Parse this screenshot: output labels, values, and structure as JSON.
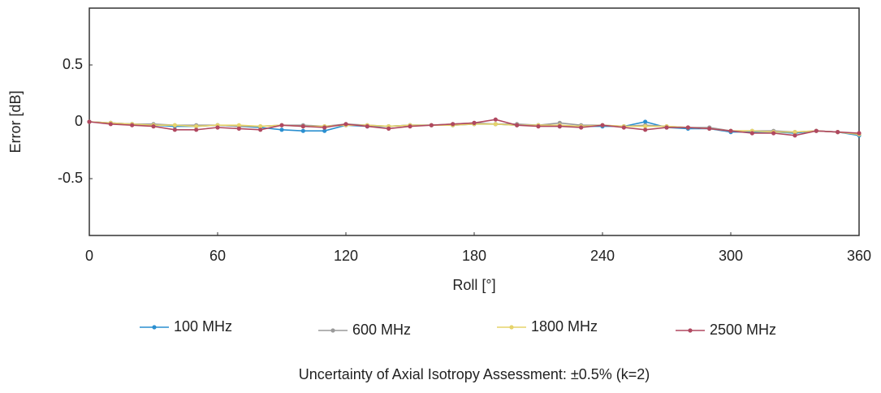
{
  "chart_data": {
    "type": "line",
    "x_label": "Roll [°]",
    "y_label": "Error [dB]",
    "annotation": "Uncertainty of Axial Isotropy Assessment: ±0.5% (k=2)",
    "x": [
      0,
      10,
      20,
      30,
      40,
      50,
      60,
      70,
      80,
      90,
      100,
      110,
      120,
      130,
      140,
      150,
      160,
      170,
      180,
      190,
      200,
      210,
      220,
      230,
      240,
      250,
      260,
      270,
      280,
      290,
      300,
      310,
      320,
      330,
      340,
      350,
      360
    ],
    "xlim": [
      0,
      360
    ],
    "xticks": [
      0,
      60,
      120,
      180,
      240,
      300,
      360
    ],
    "ylim": [
      -1,
      1
    ],
    "yticks": [
      -0.5,
      0,
      0.5
    ],
    "series": [
      {
        "name": "100 MHz",
        "color": "#2a8fd0",
        "values": [
          0,
          -0.01,
          -0.02,
          -0.03,
          -0.04,
          -0.04,
          -0.03,
          -0.04,
          -0.05,
          -0.07,
          -0.08,
          -0.08,
          -0.03,
          -0.04,
          -0.04,
          -0.03,
          -0.03,
          -0.03,
          -0.02,
          -0.02,
          -0.03,
          -0.03,
          -0.04,
          -0.04,
          -0.04,
          -0.04,
          0.0,
          -0.05,
          -0.06,
          -0.06,
          -0.09,
          -0.09,
          -0.09,
          -0.1,
          -0.08,
          -0.09,
          -0.12
        ]
      },
      {
        "name": "600 MHz",
        "color": "#9a9a9a",
        "values": [
          0,
          -0.01,
          -0.02,
          -0.02,
          -0.03,
          -0.03,
          -0.03,
          -0.04,
          -0.04,
          -0.03,
          -0.03,
          -0.04,
          -0.02,
          -0.03,
          -0.04,
          -0.03,
          -0.03,
          -0.02,
          -0.01,
          -0.02,
          -0.02,
          -0.03,
          -0.01,
          -0.03,
          -0.03,
          -0.04,
          -0.03,
          -0.04,
          -0.05,
          -0.05,
          -0.08,
          -0.08,
          -0.08,
          -0.09,
          -0.08,
          -0.09,
          -0.11
        ]
      },
      {
        "name": "1800 MHz",
        "color": "#e6d36a",
        "values": [
          0,
          -0.01,
          -0.02,
          -0.03,
          -0.03,
          -0.04,
          -0.03,
          -0.03,
          -0.04,
          -0.03,
          -0.04,
          -0.04,
          -0.03,
          -0.03,
          -0.04,
          -0.03,
          -0.03,
          -0.03,
          -0.02,
          -0.02,
          -0.03,
          -0.03,
          -0.03,
          -0.04,
          -0.03,
          -0.04,
          -0.04,
          -0.04,
          -0.05,
          -0.06,
          -0.08,
          -0.08,
          -0.09,
          -0.09,
          -0.08,
          -0.09,
          -0.11
        ]
      },
      {
        "name": "2500 MHz",
        "color": "#b04860",
        "values": [
          0,
          -0.02,
          -0.03,
          -0.04,
          -0.07,
          -0.07,
          -0.05,
          -0.06,
          -0.07,
          -0.03,
          -0.04,
          -0.05,
          -0.02,
          -0.04,
          -0.06,
          -0.04,
          -0.03,
          -0.02,
          -0.01,
          0.02,
          -0.03,
          -0.04,
          -0.04,
          -0.05,
          -0.03,
          -0.05,
          -0.07,
          -0.05,
          -0.05,
          -0.06,
          -0.08,
          -0.1,
          -0.1,
          -0.12,
          -0.08,
          -0.09,
          -0.1
        ]
      }
    ]
  }
}
